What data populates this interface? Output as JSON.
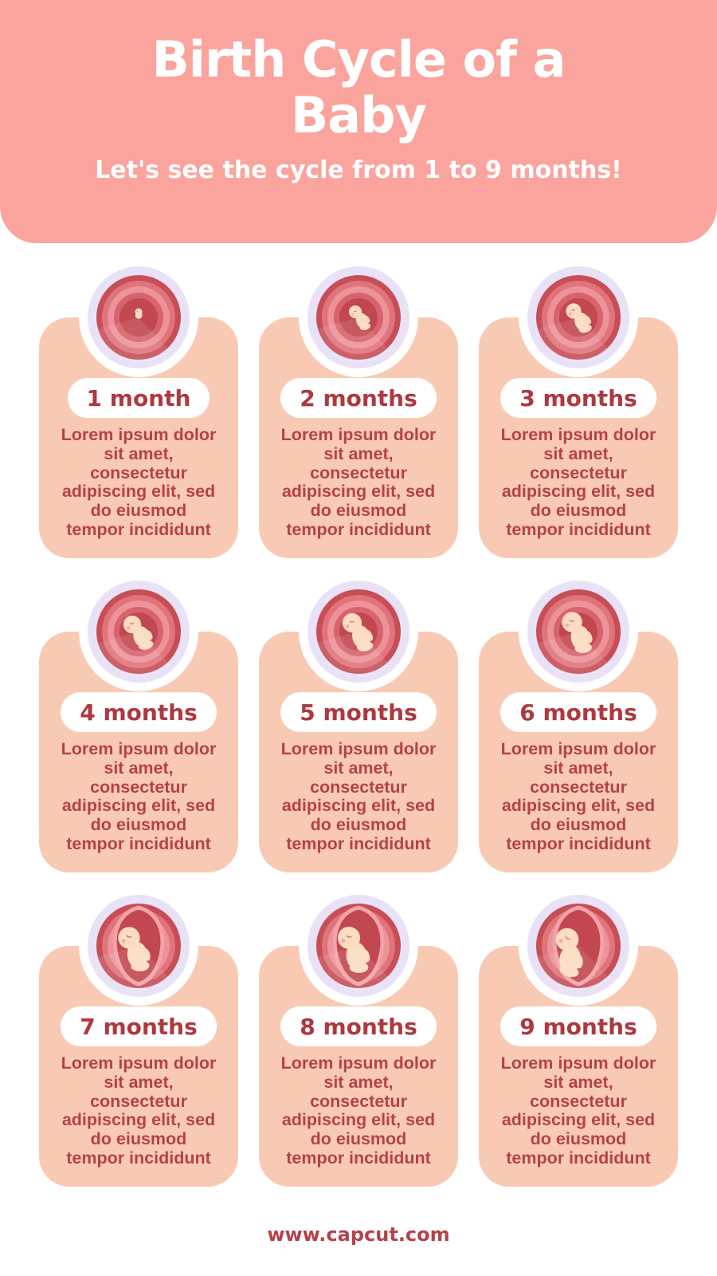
{
  "header": {
    "title": "Birth Cycle of a Baby",
    "subtitle": "Let's see the cycle from 1 to 9 months!"
  },
  "cards": [
    {
      "label": "1 month",
      "description": "Lorem ipsum dolor\nsit amet,\nconsectetur\nadipiscing elit, sed\ndo eiusmod\ntempor incididunt"
    },
    {
      "label": "2 months",
      "description": "Lorem ipsum dolor\nsit amet,\nconsectetur\nadipiscing elit, sed\ndo eiusmod\ntempor incididunt"
    },
    {
      "label": "3 months",
      "description": "Lorem ipsum dolor\nsit amet,\nconsectetur\nadipiscing elit, sed\ndo eiusmod\ntempor incididunt"
    },
    {
      "label": "4 months",
      "description": "Lorem ipsum dolor\nsit amet,\nconsectetur\nadipiscing elit, sed\ndo eiusmod\ntempor incididunt"
    },
    {
      "label": "5 months",
      "description": "Lorem ipsum dolor\nsit amet,\nconsectetur\nadipiscing elit, sed\ndo eiusmod\ntempor incididunt"
    },
    {
      "label": "6 months",
      "description": "Lorem ipsum dolor\nsit amet,\nconsectetur\nadipiscing elit, sed\ndo eiusmod\ntempor incididunt"
    },
    {
      "label": "7 months",
      "description": "Lorem ipsum dolor\nsit amet,\nconsectetur\nadipiscing elit, sed\ndo eiusmod\ntempor incididunt"
    },
    {
      "label": "8 months",
      "description": "Lorem ipsum dolor\nsit amet,\nconsectetur\nadipiscing elit, sed\ndo eiusmod\ntempor incididunt"
    },
    {
      "label": "9 months",
      "description": "Lorem ipsum dolor\nsit amet,\nconsectetur\nadipiscing elit, sed\ndo eiusmod\ntempor incididunt"
    }
  ],
  "footer": {
    "url": "www.capcut.com"
  },
  "palette": {
    "header_bg": "#FAA49D",
    "header_text": "#FFFFFF",
    "card_bg": "#F9CAB3",
    "pill_bg": "#FFFFFF",
    "label_color": "#AE3840",
    "body_color": "#B5414A",
    "ring_lavender": "#E9E2F6",
    "womb_rim": "#C74E57",
    "womb_mid": "#E0737C",
    "womb_light": "#EC9298",
    "womb_mid2": "#D6636D",
    "womb_inner": "#C24750",
    "fetus_skin": "#FBDCC1",
    "fetus_blush": "#F3ACB3",
    "sac_pink": "#F2A3A8",
    "eye_color": "#C08288"
  }
}
